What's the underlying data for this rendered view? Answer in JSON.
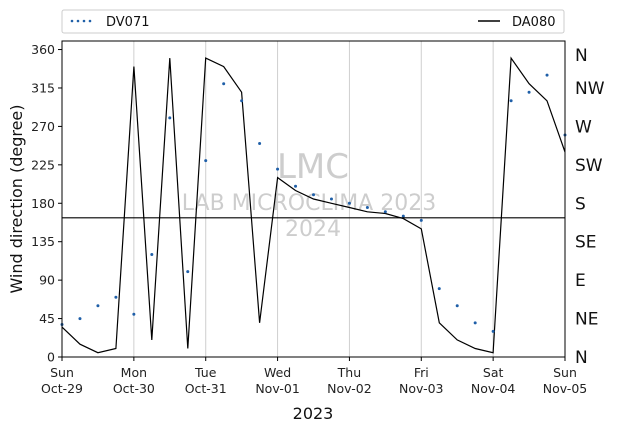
{
  "chart_data": {
    "type": "line",
    "xlabel": "2023",
    "ylabel": "Wind direction (degree)",
    "ylim": [
      0,
      370
    ],
    "yticks": [
      0,
      45,
      90,
      135,
      180,
      225,
      270,
      315,
      360
    ],
    "x_range": [
      "2023-10-29",
      "2023-11-05"
    ],
    "x_ticks": [
      {
        "day": "Sun",
        "date": "Oct-29"
      },
      {
        "day": "Mon",
        "date": "Oct-30"
      },
      {
        "day": "Tue",
        "date": "Oct-31"
      },
      {
        "day": "Wed",
        "date": "Nov-01"
      },
      {
        "day": "Thu",
        "date": "Nov-02"
      },
      {
        "day": "Fri",
        "date": "Nov-03"
      },
      {
        "day": "Sat",
        "date": "Nov-04"
      },
      {
        "day": "Sun",
        "date": "Nov-05"
      }
    ],
    "compass_labels": [
      "N",
      "NE",
      "E",
      "SE",
      "S",
      "SW",
      "W",
      "NW",
      "N"
    ],
    "reference_line": 163,
    "grid": "vertical at day ticks",
    "legend": {
      "placement": "top",
      "entries": [
        "DV071",
        "DA080"
      ]
    },
    "colors": {
      "DV071": "#1f5fa8",
      "DA080": "#000000"
    },
    "watermark": [
      "LMC",
      "LAB MICROCLIMA 2023",
      "2024"
    ],
    "series": [
      {
        "name": "DV071",
        "style": "dots",
        "x": [
          "2023-10-29",
          "2023-10-29T06:00",
          "2023-10-29T12:00",
          "2023-10-29T18:00",
          "2023-10-30T00:00",
          "2023-10-30T06:00",
          "2023-10-30T12:00",
          "2023-10-30T18:00",
          "2023-10-31T00:00",
          "2023-10-31T06:00",
          "2023-10-31T12:00",
          "2023-10-31T18:00",
          "2023-11-01T00:00",
          "2023-11-01T06:00",
          "2023-11-01T12:00",
          "2023-11-01T18:00",
          "2023-11-02T00:00",
          "2023-11-02T06:00",
          "2023-11-02T12:00",
          "2023-11-02T18:00",
          "2023-11-03T00:00",
          "2023-11-03T06:00",
          "2023-11-03T12:00",
          "2023-11-03T18:00",
          "2023-11-04T00:00",
          "2023-11-04T06:00",
          "2023-11-04T12:00",
          "2023-11-04T18:00",
          "2023-11-05"
        ],
        "values": [
          38,
          45,
          60,
          70,
          50,
          120,
          280,
          100,
          230,
          320,
          300,
          250,
          220,
          200,
          190,
          185,
          180,
          175,
          170,
          165,
          160,
          80,
          60,
          40,
          30,
          300,
          310,
          330,
          260
        ]
      },
      {
        "name": "DA080",
        "style": "line",
        "x": [
          "2023-10-29",
          "2023-10-29T06:00",
          "2023-10-29T12:00",
          "2023-10-29T18:00",
          "2023-10-30T00:00",
          "2023-10-30T06:00",
          "2023-10-30T12:00",
          "2023-10-30T18:00",
          "2023-10-31T00:00",
          "2023-10-31T06:00",
          "2023-10-31T12:00",
          "2023-10-31T18:00",
          "2023-11-01T00:00",
          "2023-11-01T06:00",
          "2023-11-01T12:00",
          "2023-11-01T18:00",
          "2023-11-02T00:00",
          "2023-11-02T06:00",
          "2023-11-02T12:00",
          "2023-11-02T18:00",
          "2023-11-03T00:00",
          "2023-11-03T06:00",
          "2023-11-03T12:00",
          "2023-11-03T18:00",
          "2023-11-04T00:00",
          "2023-11-04T06:00",
          "2023-11-04T12:00",
          "2023-11-04T18:00",
          "2023-11-05"
        ],
        "values": [
          35,
          15,
          5,
          10,
          340,
          20,
          350,
          10,
          350,
          340,
          310,
          40,
          210,
          195,
          185,
          180,
          175,
          170,
          168,
          162,
          150,
          40,
          20,
          10,
          5,
          350,
          320,
          300,
          240
        ]
      }
    ]
  }
}
